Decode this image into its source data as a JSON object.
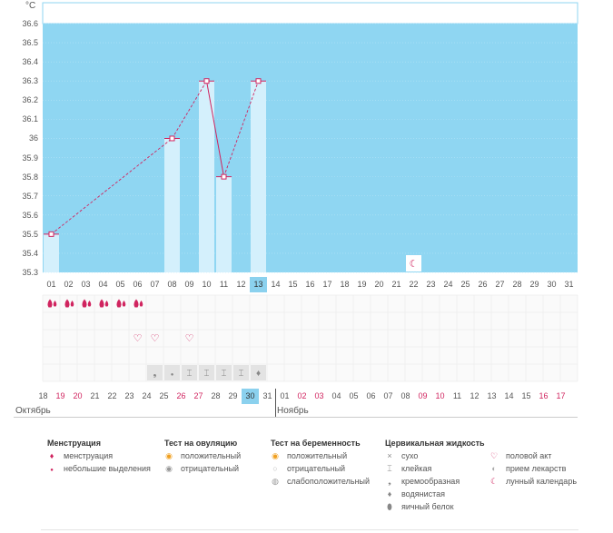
{
  "chart_data": {
    "type": "bar",
    "ylabel": "°C",
    "ylim": [
      35.3,
      36.6
    ],
    "yticks": [
      "36.6",
      "36.5",
      "36.4",
      "36.3",
      "36.2",
      "36.1",
      "36",
      "35.9",
      "35.8",
      "35.7",
      "35.6",
      "35.5",
      "35.4",
      "35.3"
    ],
    "cycle_days": [
      "01",
      "02",
      "03",
      "04",
      "05",
      "06",
      "07",
      "08",
      "09",
      "10",
      "11",
      "12",
      "13",
      "14",
      "15",
      "16",
      "17",
      "18",
      "19",
      "20",
      "21",
      "22",
      "23",
      "24",
      "25",
      "26",
      "27",
      "28",
      "29",
      "30",
      "31"
    ],
    "selected_day": "13",
    "temperatures": [
      {
        "day": "01",
        "value": 35.5
      },
      {
        "day": "08",
        "value": 36.0
      },
      {
        "day": "10",
        "value": 36.3
      },
      {
        "day": "11",
        "value": 35.8
      },
      {
        "day": "13",
        "value": 36.3
      }
    ],
    "moon_day": "22",
    "menstruation_days": [
      "01",
      "02",
      "03",
      "04",
      "05",
      "06"
    ],
    "intercourse_days": [
      "06",
      "07",
      "09"
    ],
    "fluid_marks": [
      {
        "day": "07",
        "icon": "creamy-icon"
      },
      {
        "day": "08",
        "icon": "spotting-icon"
      },
      {
        "day": "09",
        "icon": "sticky-icon"
      },
      {
        "day": "10",
        "icon": "sticky-icon"
      },
      {
        "day": "11",
        "icon": "sticky-icon"
      },
      {
        "day": "12",
        "icon": "sticky-icon"
      },
      {
        "day": "13",
        "icon": "watery-icon"
      }
    ],
    "dates": [
      {
        "label": "18",
        "red": false
      },
      {
        "label": "19",
        "red": true
      },
      {
        "label": "20",
        "red": true
      },
      {
        "label": "21",
        "red": false
      },
      {
        "label": "22",
        "red": false
      },
      {
        "label": "23",
        "red": false
      },
      {
        "label": "24",
        "red": false
      },
      {
        "label": "25",
        "red": false
      },
      {
        "label": "26",
        "red": true
      },
      {
        "label": "27",
        "red": true
      },
      {
        "label": "28",
        "red": false
      },
      {
        "label": "29",
        "red": false
      },
      {
        "label": "30",
        "red": false,
        "selected": true
      },
      {
        "label": "31",
        "red": false
      },
      {
        "label": "01",
        "red": false
      },
      {
        "label": "02",
        "red": true
      },
      {
        "label": "03",
        "red": true
      },
      {
        "label": "04",
        "red": false
      },
      {
        "label": "05",
        "red": false
      },
      {
        "label": "06",
        "red": false
      },
      {
        "label": "07",
        "red": false
      },
      {
        "label": "08",
        "red": false
      },
      {
        "label": "09",
        "red": true
      },
      {
        "label": "10",
        "red": true
      },
      {
        "label": "11",
        "red": false
      },
      {
        "label": "12",
        "red": false
      },
      {
        "label": "13",
        "red": false
      },
      {
        "label": "14",
        "red": false
      },
      {
        "label": "15",
        "red": false
      },
      {
        "label": "16",
        "red": true
      },
      {
        "label": "17",
        "red": true
      }
    ],
    "months": [
      "Октябрь",
      "Ноябрь"
    ],
    "colors": {
      "plot_bg": "#8fd6f2",
      "bar": "#d4f0fc",
      "line": "#d0245f",
      "accent": "#d0245f",
      "select": "#8bd1ee"
    }
  },
  "legend": {
    "menstruation": {
      "title": "Менструация",
      "items": [
        "менструация",
        "небольшие выделения"
      ]
    },
    "ovulation": {
      "title": "Тест на овуляцию",
      "items": [
        "положительный",
        "отрицательный"
      ]
    },
    "pregnancy": {
      "title": "Тест на беременность",
      "items": [
        "положительный",
        "отрицательный",
        "слабоположительный"
      ]
    },
    "fluid": {
      "title": "Цервикальная жидкость",
      "items": [
        "сухо",
        "клейкая",
        "кремообразная",
        "водянистая",
        "яичный белок"
      ]
    },
    "other": {
      "items": [
        "половой акт",
        "прием лекарств",
        "лунный календарь"
      ]
    }
  }
}
